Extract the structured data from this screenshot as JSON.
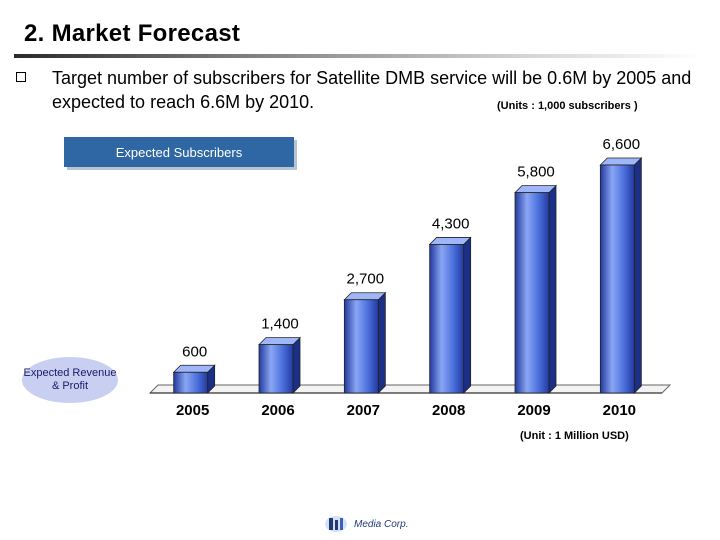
{
  "header": {
    "title": "2.   Market Forecast"
  },
  "body": {
    "bullet_text": "Target number of subscribers for Satellite DMB service will be 0.6M by 2005 and expected to reach 6.6M by 2010.",
    "units_subscribers": "(Units : 1,000 subscribers )",
    "legend_label": "Expected Subscribers",
    "ellipse_label": "Expected Revenue & Profit",
    "units_usd": "(Unit : 1 Million USD)",
    "logo_text": "Media Corp."
  },
  "chart_data": {
    "type": "bar",
    "title": "",
    "xlabel": "",
    "ylabel": "",
    "categories": [
      "2005",
      "2006",
      "2007",
      "2008",
      "2009",
      "2010"
    ],
    "values": [
      600,
      1400,
      2700,
      4300,
      5800,
      6600
    ],
    "value_labels": [
      "600",
      "1,400",
      "2,700",
      "4,300",
      "5,800",
      "6,600"
    ],
    "ylim": [
      0,
      7000
    ],
    "grid": false,
    "colors": {
      "bar_light": "#8aa6f4",
      "bar_main": "#4a6fdc",
      "bar_dark": "#223a9e",
      "legend_bg": "#2f67a4",
      "ellipse_bg": "#c9cff0"
    }
  }
}
